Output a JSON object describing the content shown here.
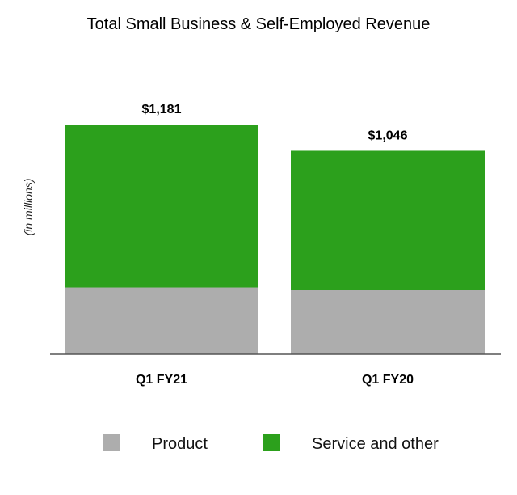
{
  "chart_data": {
    "type": "bar",
    "stacked": true,
    "title": "Total Small Business & Self-Employed Revenue",
    "xlabel": "",
    "ylabel": "(in millions)",
    "categories": [
      "Q1 FY21",
      "Q1 FY20"
    ],
    "totals": [
      1181,
      1046
    ],
    "total_labels": [
      "$1,181",
      "$1,046"
    ],
    "series": [
      {
        "name": "Product",
        "color": "#ADADAD",
        "values": [
          343,
          330
        ]
      },
      {
        "name": "Service and other",
        "color": "#2CA01C",
        "values": [
          838,
          716
        ]
      }
    ],
    "ylim": [
      0,
      1181
    ],
    "grid": false,
    "legend": "bottom"
  }
}
